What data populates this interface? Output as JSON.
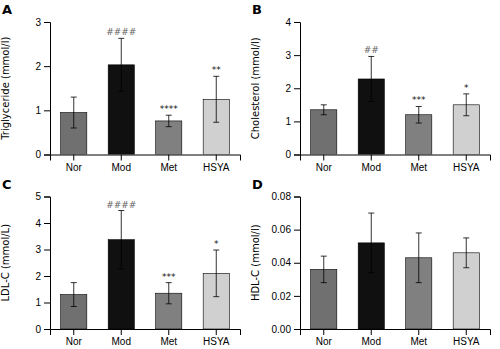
{
  "chart_data": [
    {
      "type": "bar",
      "title": "A",
      "ylabel": "Triglyceride (mmol/l)",
      "categories": [
        "Nor",
        "Mod",
        "Met",
        "HSYA"
      ],
      "values": [
        0.95,
        2.03,
        0.76,
        1.25
      ],
      "errors": [
        0.35,
        0.6,
        0.13,
        0.52
      ],
      "colors": [
        "#707070",
        "#101010",
        "#808080",
        "#d0d0d0"
      ],
      "ylim": [
        0,
        3
      ],
      "yticks": [
        0,
        1,
        2,
        3
      ],
      "annotations": [
        {
          "category": "Mod",
          "text": "####",
          "color": "#666666"
        },
        {
          "category": "Met",
          "text": "****",
          "color": "#111111"
        },
        {
          "category": "HSYA",
          "text": "**",
          "color": "#111111"
        }
      ]
    },
    {
      "type": "bar",
      "title": "B",
      "ylabel": "Cholesterol (mmol/l)",
      "categories": [
        "Nor",
        "Mod",
        "Met",
        "HSYA"
      ],
      "values": [
        1.35,
        2.28,
        1.2,
        1.5
      ],
      "errors": [
        0.15,
        0.68,
        0.25,
        0.33
      ],
      "colors": [
        "#707070",
        "#101010",
        "#808080",
        "#d0d0d0"
      ],
      "ylim": [
        0,
        4
      ],
      "yticks": [
        0,
        1,
        2,
        3,
        4
      ],
      "annotations": [
        {
          "category": "Mod",
          "text": "##",
          "color": "#666666"
        },
        {
          "category": "Met",
          "text": "***",
          "color": "#111111"
        },
        {
          "category": "HSYA",
          "text": "*",
          "color": "#111111"
        }
      ]
    },
    {
      "type": "bar",
      "title": "C",
      "ylabel": "LDL-C (mmol/L)",
      "categories": [
        "Nor",
        "Mod",
        "Met",
        "HSYA"
      ],
      "values": [
        1.3,
        3.37,
        1.35,
        2.1
      ],
      "errors": [
        0.45,
        1.1,
        0.4,
        0.88
      ],
      "colors": [
        "#707070",
        "#101010",
        "#808080",
        "#d0d0d0"
      ],
      "ylim": [
        0,
        5
      ],
      "yticks": [
        0,
        1,
        2,
        3,
        4,
        5
      ],
      "annotations": [
        {
          "category": "Mod",
          "text": "####",
          "color": "#666666"
        },
        {
          "category": "Met",
          "text": "***",
          "color": "#111111"
        },
        {
          "category": "HSYA",
          "text": "*",
          "color": "#111111"
        }
      ]
    },
    {
      "type": "bar",
      "title": "D",
      "ylabel": "HDL-C (mmol/l)",
      "categories": [
        "Nor",
        "Mod",
        "Met",
        "HSYA"
      ],
      "values": [
        0.036,
        0.052,
        0.043,
        0.046
      ],
      "errors": [
        0.008,
        0.018,
        0.015,
        0.009
      ],
      "colors": [
        "#707070",
        "#101010",
        "#808080",
        "#d0d0d0"
      ],
      "ylim": [
        0,
        0.08
      ],
      "yticks": [
        {
          "value": 0,
          "label": "0.00"
        },
        0.02,
        0.04,
        0.06,
        0.08
      ],
      "annotations": []
    }
  ]
}
